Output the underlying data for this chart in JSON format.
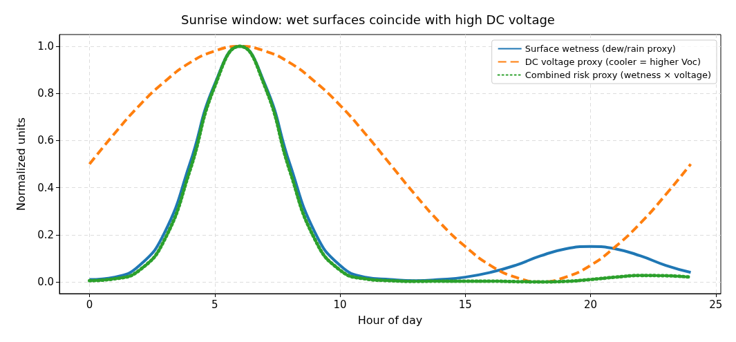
{
  "chart_data": {
    "type": "line",
    "title": "Sunrise window: wet surfaces coincide with high DC voltage",
    "xlabel": "Hour of day",
    "ylabel": "Normalized units",
    "x": [
      0,
      1,
      2,
      3,
      4,
      5,
      6,
      7,
      8,
      9,
      10,
      11,
      12,
      13,
      14,
      15,
      16,
      17,
      18,
      19,
      20,
      21,
      22,
      23,
      24
    ],
    "series": [
      {
        "name": "Surface wetness (dew/rain proxy)",
        "color": "#1f77b4",
        "line_style": "solid",
        "values": [
          0.01,
          0.02,
          0.07,
          0.21,
          0.5,
          0.84,
          1.0,
          0.84,
          0.5,
          0.21,
          0.07,
          0.02,
          0.01,
          0.005,
          0.01,
          0.02,
          0.04,
          0.07,
          0.11,
          0.14,
          0.15,
          0.14,
          0.11,
          0.07,
          0.04
        ]
      },
      {
        "name": "DC voltage proxy (cooler = higher Voc)",
        "color": "#ff7f0e",
        "line_style": "dashed",
        "values": [
          0.5,
          0.63,
          0.75,
          0.85,
          0.93,
          0.98,
          1.0,
          0.98,
          0.93,
          0.85,
          0.75,
          0.63,
          0.5,
          0.37,
          0.25,
          0.15,
          0.07,
          0.02,
          0.0,
          0.02,
          0.07,
          0.15,
          0.25,
          0.37,
          0.5
        ]
      },
      {
        "name": "Combined risk proxy (wetness × voltage)",
        "color": "#2ca02c",
        "line_style": "dotted",
        "values": [
          0.005,
          0.013,
          0.05,
          0.18,
          0.47,
          0.83,
          1.0,
          0.83,
          0.47,
          0.18,
          0.05,
          0.013,
          0.005,
          0.002,
          0.003,
          0.003,
          0.003,
          0.001,
          0.0,
          0.002,
          0.01,
          0.02,
          0.027,
          0.026,
          0.02
        ]
      }
    ],
    "xlim": [
      -1.2,
      25.2
    ],
    "xticks": [
      0,
      5,
      10,
      15,
      20,
      25
    ],
    "ylim": [
      -0.05,
      1.05
    ],
    "yticks": [
      {
        "value": 0,
        "label": "0.0"
      },
      {
        "value": 0.2,
        "label": "0.2"
      },
      {
        "value": 0.4,
        "label": "0.4"
      },
      {
        "value": 0.6,
        "label": "0.6"
      },
      {
        "value": 0.8,
        "label": "0.8"
      },
      {
        "value": 1,
        "label": "1.0"
      }
    ],
    "grid": true,
    "legend": "top right",
    "marker": "none"
  }
}
